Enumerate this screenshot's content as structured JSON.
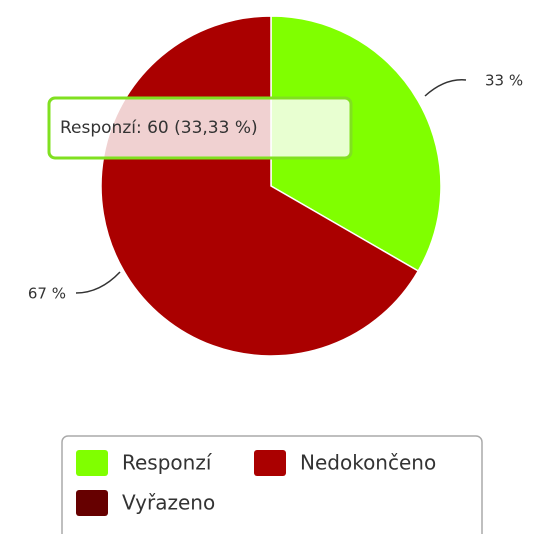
{
  "chart_data": {
    "type": "pie",
    "categories": [
      "Responzí",
      "Nedokončeno",
      "Vyřazeno"
    ],
    "values": [
      33.33,
      66.67,
      0
    ],
    "value_labels": [
      "33 %",
      "67 %",
      null
    ],
    "colors": [
      "#80ff00",
      "#aa0000",
      "#660000"
    ],
    "tooltip": "Responzí: 60 (33,33 %)",
    "legend": "bottom"
  }
}
